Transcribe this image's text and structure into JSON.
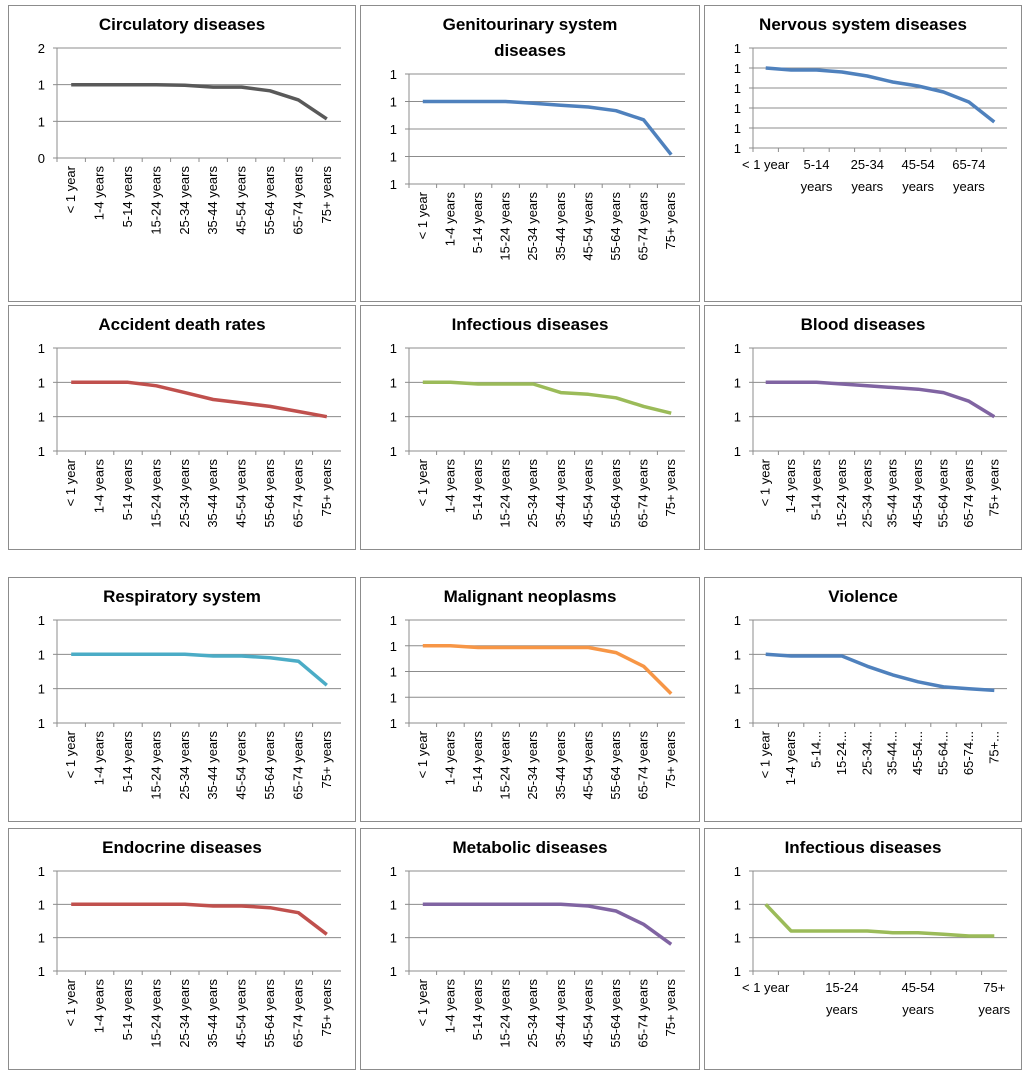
{
  "chart_data": [
    {
      "type": "line",
      "title": "Circulatory diseases",
      "color": "#595959",
      "categories": [
        "< 1 year",
        "1-4 years",
        "5-14 years",
        "15-24 years",
        "25-34 years",
        "35-44 years",
        "45-54 years",
        "55-64 years",
        "65-74 years",
        "75+ years"
      ],
      "values": [
        1.2,
        1.2,
        1.2,
        1.2,
        1.19,
        1.16,
        1.16,
        1.1,
        0.95,
        0.64
      ],
      "ylim": [
        0,
        1.8
      ],
      "yticks": [
        {
          "value": 0,
          "label": "0"
        },
        {
          "value": 0.6,
          "label": "1"
        },
        {
          "value": 1.2,
          "label": "1"
        },
        {
          "value": 1.8,
          "label": "2"
        }
      ],
      "grid": true
    },
    {
      "type": "line",
      "title": "Genitourinary system diseases",
      "color": "#4f81bd",
      "categories": [
        "< 1 year",
        "1-4 years",
        "5-14 years",
        "15-24 years",
        "25-34 years",
        "35-44 years",
        "45-54 years",
        "55-64 years",
        "65-74 years",
        "75+ years"
      ],
      "values": [
        1.05,
        1.05,
        1.05,
        1.05,
        1.04,
        1.03,
        1.02,
        1.0,
        0.95,
        0.76
      ],
      "ylim": [
        0.6,
        1.2
      ],
      "yticks": [
        {
          "value": 0.6,
          "label": "1"
        },
        {
          "value": 0.75,
          "label": "1"
        },
        {
          "value": 0.9,
          "label": "1"
        },
        {
          "value": 1.05,
          "label": "1"
        },
        {
          "value": 1.2,
          "label": "1"
        }
      ],
      "grid": true
    },
    {
      "type": "line",
      "title": "Nervous system diseases",
      "color": "#4f81bd",
      "categories": [
        "< 1 year",
        null,
        "5-14 years",
        null,
        "25-34 years",
        null,
        "45-54 years",
        null,
        "65-74 years",
        null
      ],
      "values": [
        1.0,
        0.99,
        0.99,
        0.98,
        0.96,
        0.93,
        0.91,
        0.88,
        0.83,
        0.73
      ],
      "ylim": [
        0.6,
        1.1
      ],
      "yticks": [
        {
          "value": 0.6,
          "label": "1"
        },
        {
          "value": 0.7,
          "label": "1"
        },
        {
          "value": 0.8,
          "label": "1"
        },
        {
          "value": 0.9,
          "label": "1"
        },
        {
          "value": 1.0,
          "label": "1"
        },
        {
          "value": 1.1,
          "label": "1"
        }
      ],
      "grid": true
    },
    {
      "type": "line",
      "title": "Accident death rates",
      "color": "#c0504d",
      "categories": [
        "< 1 year",
        "1-4 years",
        "5-14 years",
        "15-24 years",
        "25-34 years",
        "35-44 years",
        "45-54 years",
        "55-64 years",
        "65-74 years",
        "75+ years"
      ],
      "values": [
        1.0,
        1.0,
        1.0,
        0.98,
        0.94,
        0.9,
        0.88,
        0.86,
        0.83,
        0.8
      ],
      "ylim": [
        0.6,
        1.2
      ],
      "yticks": [
        {
          "value": 0.6,
          "label": "1"
        },
        {
          "value": 0.8,
          "label": "1"
        },
        {
          "value": 1.0,
          "label": "1"
        },
        {
          "value": 1.2,
          "label": "1"
        }
      ],
      "grid": true
    },
    {
      "type": "line",
      "title": "Infectious diseases",
      "color": "#9bbb59",
      "categories": [
        "< 1 year",
        "1-4 years",
        "5-14 years",
        "15-24 years",
        "25-34 years",
        "35-44 years",
        "45-54 years",
        "55-64 years",
        "65-74 years",
        "75+ years"
      ],
      "values": [
        1.0,
        1.0,
        0.99,
        0.99,
        0.99,
        0.94,
        0.93,
        0.91,
        0.86,
        0.82
      ],
      "ylim": [
        0.6,
        1.2
      ],
      "yticks": [
        {
          "value": 0.6,
          "label": "1"
        },
        {
          "value": 0.8,
          "label": "1"
        },
        {
          "value": 1.0,
          "label": "1"
        },
        {
          "value": 1.2,
          "label": "1"
        }
      ],
      "grid": true
    },
    {
      "type": "line",
      "title": "Blood diseases",
      "color": "#8064a2",
      "categories": [
        "< 1 year",
        "1-4 years",
        "5-14 years",
        "15-24 years",
        "25-34 years",
        "35-44 years",
        "45-54 years",
        "55-64 years",
        "65-74 years",
        "75+ years"
      ],
      "values": [
        1.0,
        1.0,
        1.0,
        0.99,
        0.98,
        0.97,
        0.96,
        0.94,
        0.89,
        0.8
      ],
      "ylim": [
        0.6,
        1.2
      ],
      "yticks": [
        {
          "value": 0.6,
          "label": "1"
        },
        {
          "value": 0.8,
          "label": "1"
        },
        {
          "value": 1.0,
          "label": "1"
        },
        {
          "value": 1.2,
          "label": "1"
        }
      ],
      "grid": true
    },
    {
      "type": "line",
      "title": "Respiratory system",
      "color": "#4bacc6",
      "categories": [
        "< 1 year",
        "1-4 years",
        "5-14 years",
        "15-24 years",
        "25-34 years",
        "35-44 years",
        "45-54 years",
        "55-64 years",
        "65-74 years",
        "75+ years"
      ],
      "values": [
        1.0,
        1.0,
        1.0,
        1.0,
        1.0,
        0.99,
        0.99,
        0.98,
        0.96,
        0.82
      ],
      "ylim": [
        0.6,
        1.2
      ],
      "yticks": [
        {
          "value": 0.6,
          "label": "1"
        },
        {
          "value": 0.8,
          "label": "1"
        },
        {
          "value": 1.0,
          "label": "1"
        },
        {
          "value": 1.2,
          "label": "1"
        }
      ],
      "grid": true
    },
    {
      "type": "line",
      "title": "Malignant neoplasms",
      "color": "#f79646",
      "categories": [
        "< 1 year",
        "1-4 years",
        "5-14 years",
        "15-24 years",
        "25-34 years",
        "35-44 years",
        "45-54 years",
        "55-64 years",
        "65-74 years",
        "75+ years"
      ],
      "values": [
        1.05,
        1.05,
        1.04,
        1.04,
        1.04,
        1.04,
        1.04,
        1.01,
        0.93,
        0.77
      ],
      "ylim": [
        0.6,
        1.2
      ],
      "yticks": [
        {
          "value": 0.6,
          "label": "1"
        },
        {
          "value": 0.75,
          "label": "1"
        },
        {
          "value": 0.9,
          "label": "1"
        },
        {
          "value": 1.05,
          "label": "1"
        },
        {
          "value": 1.2,
          "label": "1"
        }
      ],
      "grid": true
    },
    {
      "type": "line",
      "title": "Violence",
      "color": "#4f81bd",
      "categories": [
        "< 1 year",
        "1-4 years",
        "5-14...",
        "15-24...",
        "25-34...",
        "35-44...",
        "45-54...",
        "55-64...",
        "65-74...",
        "75+..."
      ],
      "values": [
        1.0,
        0.99,
        0.99,
        0.99,
        0.93,
        0.88,
        0.84,
        0.81,
        0.8,
        0.79
      ],
      "ylim": [
        0.6,
        1.2
      ],
      "yticks": [
        {
          "value": 0.6,
          "label": "1"
        },
        {
          "value": 0.8,
          "label": "1"
        },
        {
          "value": 1.0,
          "label": "1"
        },
        {
          "value": 1.2,
          "label": "1"
        }
      ],
      "grid": true
    },
    {
      "type": "line",
      "title": "Endocrine diseases",
      "color": "#c0504d",
      "categories": [
        "< 1 year",
        "1-4 years",
        "5-14 years",
        "15-24 years",
        "25-34 years",
        "35-44 years",
        "45-54 years",
        "55-64 years",
        "65-74 years",
        "75+ years"
      ],
      "values": [
        1.0,
        1.0,
        1.0,
        1.0,
        1.0,
        0.99,
        0.99,
        0.98,
        0.95,
        0.82
      ],
      "ylim": [
        0.6,
        1.2
      ],
      "yticks": [
        {
          "value": 0.6,
          "label": "1"
        },
        {
          "value": 0.8,
          "label": "1"
        },
        {
          "value": 1.0,
          "label": "1"
        },
        {
          "value": 1.2,
          "label": "1"
        }
      ],
      "grid": true
    },
    {
      "type": "line",
      "title": "Metabolic diseases",
      "color": "#8064a2",
      "categories": [
        "< 1 year",
        "1-4 years",
        "5-14 years",
        "15-24 years",
        "25-34 years",
        "35-44 years",
        "45-54 years",
        "55-64 years",
        "65-74 years",
        "75+ years"
      ],
      "values": [
        1.0,
        1.0,
        1.0,
        1.0,
        1.0,
        1.0,
        0.99,
        0.96,
        0.88,
        0.76
      ],
      "ylim": [
        0.6,
        1.2
      ],
      "yticks": [
        {
          "value": 0.6,
          "label": "1"
        },
        {
          "value": 0.8,
          "label": "1"
        },
        {
          "value": 1.0,
          "label": "1"
        },
        {
          "value": 1.2,
          "label": "1"
        }
      ],
      "grid": true
    },
    {
      "type": "line",
      "title": "Infectious diseases",
      "color": "#9bbb59",
      "categories": [
        "< 1 year",
        null,
        null,
        "15-24 years",
        null,
        null,
        "45-54 years",
        null,
        null,
        "75+ years"
      ],
      "values": [
        1.0,
        0.84,
        0.84,
        0.84,
        0.84,
        0.83,
        0.83,
        0.82,
        0.81,
        0.81
      ],
      "ylim": [
        0.6,
        1.2
      ],
      "yticks": [
        {
          "value": 0.6,
          "label": "1"
        },
        {
          "value": 0.8,
          "label": "1"
        },
        {
          "value": 1.0,
          "label": "1"
        },
        {
          "value": 1.2,
          "label": "1"
        }
      ],
      "grid": true
    }
  ]
}
